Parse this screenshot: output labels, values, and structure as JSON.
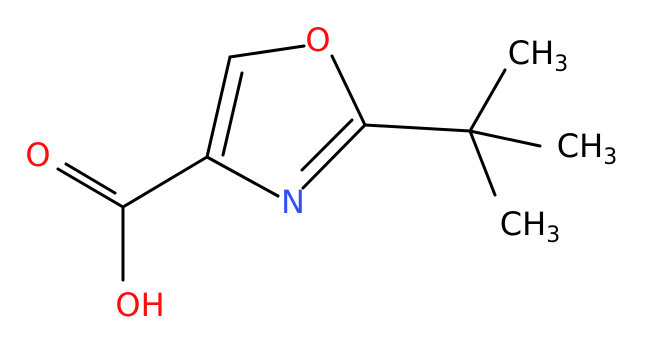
{
  "atoms": [
    {
      "text": "O"
    },
    {
      "text": "N"
    },
    {
      "text": "O"
    },
    {
      "text": "OH"
    },
    {
      "text": "CH",
      "sub": "3"
    },
    {
      "text": "CH",
      "sub": "3"
    },
    {
      "text": "CH",
      "sub": "3"
    }
  ]
}
